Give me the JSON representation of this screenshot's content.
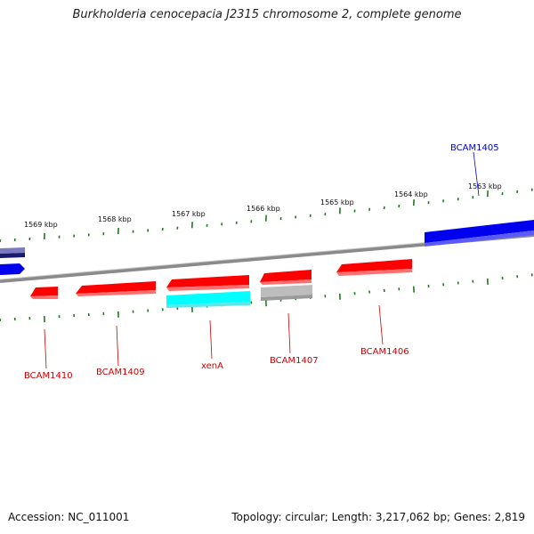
{
  "title": "Burkholderia cenocepacia J2315 chromosome 2, complete genome",
  "accession": "Accession: NC_011001",
  "topology": "Topology: circular; Length: 3,217,062 bp; Genes: 2,819",
  "colors": {
    "backbone": "#8a8a8a",
    "tick": "#1e7a1e",
    "gene_red": "#ff0000",
    "gene_blue": "#0000ee",
    "gene_cyan": "#00ffff",
    "gene_grey": "#bdbdbd",
    "label_red": "#cc0000",
    "label_blue": "#0000cc"
  },
  "scale_labels": [
    "1569 kbp",
    "1568 kbp",
    "1567 kbp",
    "1566 kbp",
    "1565 kbp",
    "1564 kbp",
    "1563 kbp"
  ],
  "gene_labels": [
    "BCAM1405",
    "BCAM1406",
    "BCAM1407",
    "xenA",
    "BCAM1409",
    "BCAM1410"
  ]
}
